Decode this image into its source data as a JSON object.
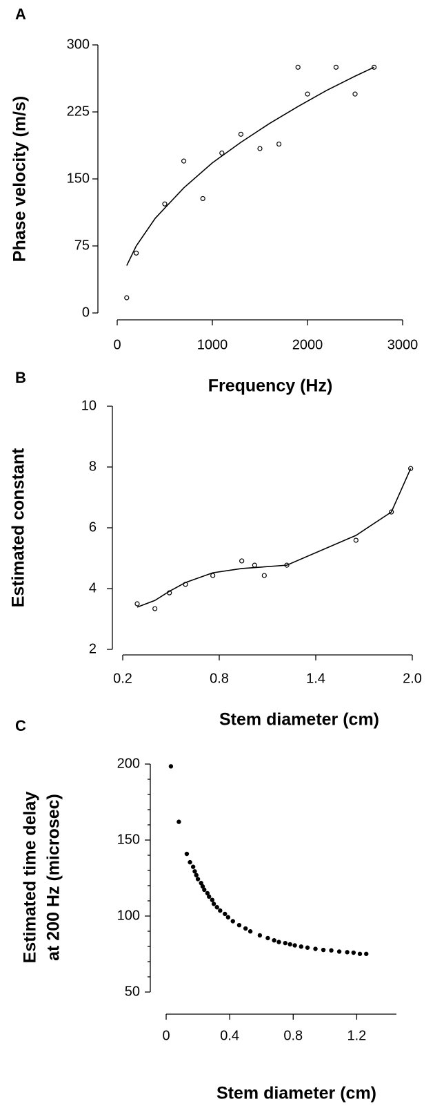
{
  "chart_data": [
    {
      "type": "scatter",
      "panel": "A",
      "xlabel": "Frequency (Hz)",
      "ylabel": "Phase velocity (m/s)",
      "xlim": [
        0,
        3000
      ],
      "xticks": [
        0,
        1000,
        2000,
        3000
      ],
      "ylim": [
        0,
        300
      ],
      "yticks": [
        0,
        75,
        150,
        225,
        300
      ],
      "point_color": "#000000",
      "point_fill": false,
      "points": {
        "x": [
          100,
          200,
          500,
          700,
          900,
          1100,
          1300,
          1500,
          1700,
          1900,
          2000,
          2300,
          2500,
          2700
        ],
        "y": [
          17,
          67,
          122,
          170,
          128,
          179,
          200,
          184,
          189,
          275,
          245,
          275,
          245,
          275
        ]
      },
      "fit": {
        "x": [
          100,
          200,
          400,
          700,
          1000,
          1300,
          1600,
          1900,
          2200,
          2500,
          2700
        ],
        "y": [
          53,
          75,
          106,
          140,
          168,
          191,
          212,
          231,
          249,
          265,
          275
        ]
      }
    },
    {
      "type": "scatter",
      "panel": "B",
      "xlabel": "Stem diameter (cm)",
      "ylabel": "Estimated constant",
      "xlim": [
        0.2,
        2.0
      ],
      "xticks": [
        0.2,
        0.8,
        1.4,
        {
          "value": 2,
          "label": "2.0"
        }
      ],
      "ylim": [
        2,
        10
      ],
      "yticks": [
        2,
        4,
        6,
        8,
        10
      ],
      "point_color": "#000000",
      "point_fill": false,
      "points": {
        "x": [
          0.29,
          0.4,
          0.49,
          0.59,
          0.76,
          0.94,
          1.02,
          1.08,
          1.22,
          1.65,
          1.87,
          1.99
        ],
        "y": [
          3.5,
          3.34,
          3.86,
          4.14,
          4.43,
          4.91,
          4.77,
          4.43,
          4.77,
          5.59,
          6.52,
          7.95
        ]
      },
      "fit": {
        "x": [
          0.29,
          0.4,
          0.49,
          0.59,
          0.76,
          0.94,
          1.22,
          1.65,
          1.87,
          1.99
        ],
        "y": [
          3.39,
          3.61,
          3.91,
          4.2,
          4.52,
          4.66,
          4.77,
          5.75,
          6.52,
          7.95
        ]
      }
    },
    {
      "type": "scatter",
      "panel": "C",
      "xlabel": "Stem diameter (cm)",
      "ylabel": [
        "Estimated time delay",
        "at 200 Hz (microsec)"
      ],
      "xlim": [
        0,
        1.45
      ],
      "xticks": [
        0,
        0.4,
        0.8,
        1.2
      ],
      "ylim": [
        50,
        200
      ],
      "yticks": [
        50,
        100,
        150,
        200
      ],
      "yminorticks": [
        60,
        70,
        80,
        90,
        110,
        120,
        130,
        140,
        160,
        170,
        180,
        190
      ],
      "point_color": "#000000",
      "point_fill": true,
      "points": {
        "x": [
          0.03,
          0.08,
          0.13,
          0.15,
          0.17,
          0.18,
          0.19,
          0.2,
          0.22,
          0.23,
          0.24,
          0.26,
          0.27,
          0.29,
          0.3,
          0.32,
          0.34,
          0.37,
          0.39,
          0.42,
          0.46,
          0.5,
          0.53,
          0.59,
          0.64,
          0.68,
          0.71,
          0.75,
          0.78,
          0.81,
          0.85,
          0.89,
          0.94,
          0.99,
          1.04,
          1.09,
          1.14,
          1.18,
          1.22,
          1.26
        ],
        "y": [
          198.5,
          162,
          140.9,
          135.4,
          132.4,
          129.4,
          126.9,
          124.3,
          121.7,
          119.5,
          117.3,
          115,
          112.8,
          110.6,
          108,
          105.8,
          103.6,
          101.4,
          99.2,
          96.6,
          94,
          91.8,
          89.9,
          87.3,
          85.5,
          84,
          82.9,
          82.2,
          81.4,
          80.7,
          79.9,
          79.2,
          78.4,
          77.7,
          77.4,
          76.6,
          76.2,
          75.9,
          75.1,
          75.1
        ]
      }
    }
  ]
}
